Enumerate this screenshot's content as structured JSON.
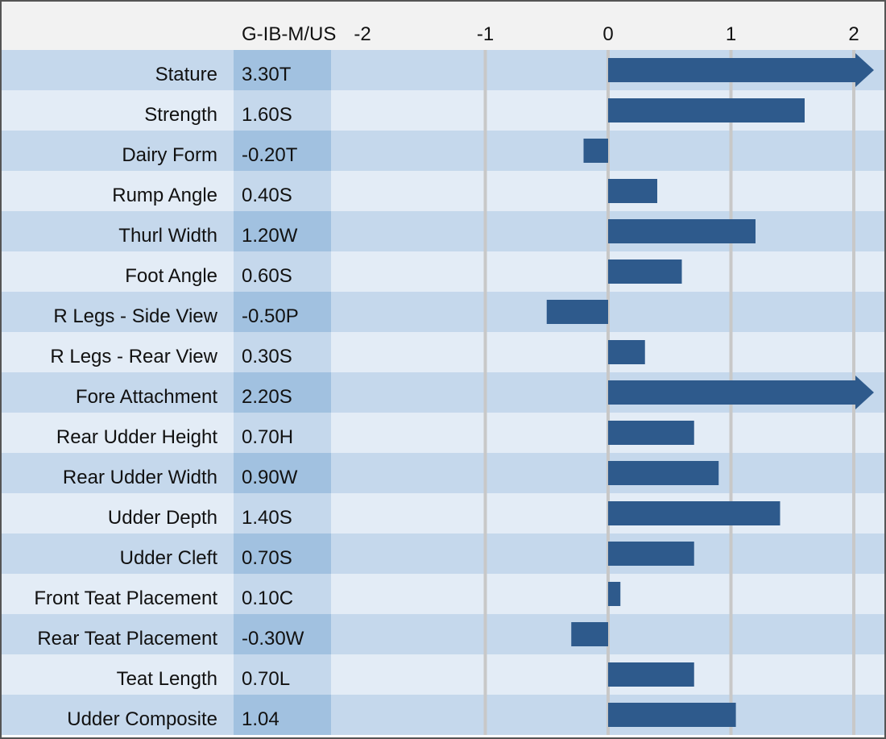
{
  "chart_data": {
    "type": "bar",
    "orientation": "horizontal",
    "column_header": "G-IB-M/US",
    "x_ticks": [
      "-2",
      "-1",
      "0",
      "1",
      "2"
    ],
    "x_tick_values": [
      -2,
      -1,
      0,
      1,
      2
    ],
    "xlim": [
      -2,
      2.2
    ],
    "grid": true,
    "categories": [
      "Stature",
      "Strength",
      "Dairy Form",
      "Rump Angle",
      "Thurl Width",
      "Foot Angle",
      "R Legs - Side View",
      "R Legs - Rear View",
      "Fore Attachment",
      "Rear Udder Height",
      "Rear Udder Width",
      "Udder Depth",
      "Udder Cleft",
      "Front Teat Placement",
      "Rear Teat Placement",
      "Teat Length",
      "Udder Composite"
    ],
    "value_labels": [
      "3.30T",
      "1.60S",
      "-0.20T",
      "0.40S",
      "1.20W",
      "0.60S",
      "-0.50P",
      "0.30S",
      "2.20S",
      "0.70H",
      "0.90W",
      "1.40S",
      "0.70S",
      "0.10C",
      "-0.30W",
      "0.70L",
      "1.04"
    ],
    "values": [
      3.3,
      1.6,
      -0.2,
      0.4,
      1.2,
      0.6,
      -0.5,
      0.3,
      2.2,
      0.7,
      0.9,
      1.4,
      0.7,
      0.1,
      -0.3,
      0.7,
      1.04
    ],
    "truncated_with_arrow": [
      "Stature",
      "Fore Attachment"
    ]
  },
  "colors": {
    "bar": "#2e5a8c",
    "row_dark": "#c5d8ec",
    "row_light": "#e3ecf6",
    "value_col_dark": "#a1c1e0",
    "value_col_light": "#c5d8ec",
    "header_bg": "#f2f2f2",
    "grid": "#c8c8c8",
    "border": "#555555"
  }
}
